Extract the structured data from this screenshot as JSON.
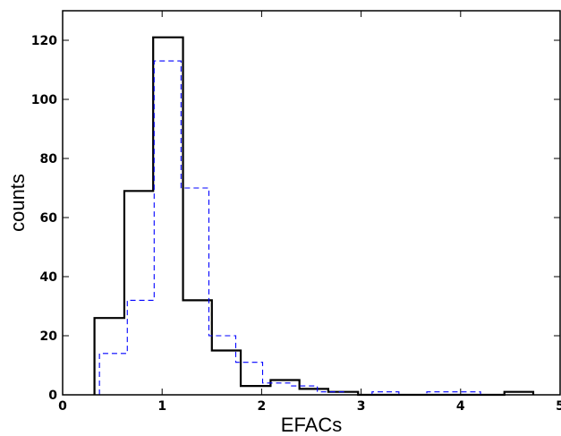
{
  "chart_data": {
    "type": "histogram",
    "xlabel": "EFACs",
    "ylabel": "counts",
    "xlim": [
      0,
      5
    ],
    "ylim": [
      0,
      130
    ],
    "xticks": [
      0,
      1,
      2,
      3,
      4,
      5
    ],
    "yticks": [
      0,
      20,
      40,
      60,
      80,
      100,
      120
    ],
    "grid": false,
    "series": [
      {
        "style": "solid",
        "color": "#000000",
        "bin_edges": [
          0.32,
          0.62,
          0.91,
          1.21,
          1.5,
          1.79,
          2.09,
          2.38,
          2.67,
          2.97,
          3.26,
          3.56,
          3.85,
          4.14,
          4.44,
          4.73
        ],
        "counts": [
          26,
          69,
          121,
          32,
          15,
          3,
          5,
          2,
          1,
          0,
          0,
          0,
          0,
          0,
          1
        ]
      },
      {
        "style": "dashed",
        "color": "#0000ff",
        "bin_edges": [
          0.37,
          0.65,
          0.92,
          1.19,
          1.47,
          1.74,
          2.01,
          2.29,
          2.56,
          2.83,
          3.11,
          3.38,
          3.66,
          3.93,
          4.2,
          4.48
        ],
        "counts": [
          14,
          32,
          113,
          70,
          20,
          11,
          4,
          3,
          1,
          0,
          1,
          0,
          1,
          1,
          0
        ]
      }
    ]
  }
}
